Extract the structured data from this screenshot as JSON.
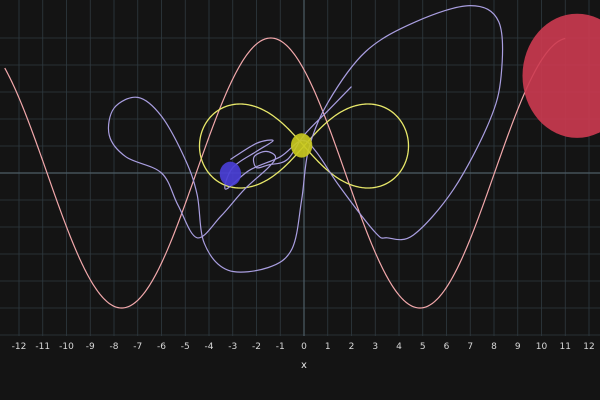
{
  "chart_data": {
    "type": "line",
    "title": "",
    "xlabel": "x",
    "ylabel": "",
    "xlim": [
      -12.6,
      12.6
    ],
    "ylim": [
      -6.9,
      5.6
    ],
    "x_ticks": [
      -12,
      -11,
      -10,
      -9,
      -8,
      -7,
      -6,
      -5,
      -4,
      -3,
      -2,
      -1,
      0,
      1,
      2,
      3,
      4,
      5,
      6,
      7,
      8,
      9,
      10,
      11,
      12
    ],
    "grid": true,
    "legend": "none",
    "colors": {
      "background": "#141414",
      "grid": "#2f3a40",
      "axis": "#4d5d66",
      "sine_curve": "#f2a8ab",
      "spiral_curve": "#a99ee0",
      "lemniscate_curve": "#e8e86a",
      "big_circle": "#cc3a50",
      "yellow_dot": "#c8c820",
      "blue_dot": "#4a3fd6"
    },
    "sine_curve": {
      "amplitude": 5,
      "period": 12.56,
      "peak_x": -1.4,
      "offset": 0,
      "x_start": -12.6,
      "x_end": 11,
      "color_key": "sine_curve"
    },
    "lemniscate_curve": {
      "center": [
        0,
        1
      ],
      "half_width": 4.4,
      "color_key": "lemniscate_curve"
    },
    "spiral_curve": {
      "points": [
        [
          2,
          3.2
        ],
        [
          1,
          2.3
        ],
        [
          0,
          1.4
        ],
        [
          -0.7,
          0.5
        ],
        [
          -1.5,
          0.3
        ],
        [
          -2,
          0.2
        ],
        [
          -2.1,
          0.6
        ],
        [
          -1.6,
          0.8
        ],
        [
          -1.2,
          0.6
        ],
        [
          -1.5,
          0.2
        ],
        [
          -2.5,
          -0.6
        ],
        [
          -3.5,
          -1.6
        ],
        [
          -4.5,
          -2.4
        ],
        [
          -5.3,
          -1.2
        ],
        [
          -6,
          0
        ],
        [
          -7.5,
          0.6
        ],
        [
          -8.2,
          1.4
        ],
        [
          -8,
          2.4
        ],
        [
          -7,
          2.8
        ],
        [
          -6,
          2.1
        ],
        [
          -5,
          0.5
        ],
        [
          -4.5,
          -0.8
        ],
        [
          -4.2,
          -2.6
        ],
        [
          -3.2,
          -3.6
        ],
        [
          -1.5,
          -3.5
        ],
        [
          -0.5,
          -2.8
        ],
        [
          -0.1,
          -1
        ],
        [
          0.2,
          0.9
        ],
        [
          1,
          2.6
        ],
        [
          2.6,
          4.5
        ],
        [
          4.7,
          5.6
        ],
        [
          7,
          6.2
        ],
        [
          8.2,
          5.6
        ],
        [
          8.3,
          3.6
        ],
        [
          7.8,
          1.9
        ],
        [
          6.3,
          -0.6
        ],
        [
          4.6,
          -2.3
        ],
        [
          3.5,
          -2.4
        ],
        [
          3,
          -2.2
        ],
        [
          1.5,
          -0.5
        ],
        [
          0.5,
          0.8
        ],
        [
          -0.1,
          1.2
        ],
        [
          -1,
          0.6
        ],
        [
          -2.3,
          0.1
        ],
        [
          -3.3,
          -0.6
        ],
        [
          -3,
          0.2
        ],
        [
          -2,
          0.8
        ],
        [
          -1.3,
          1.2
        ],
        [
          -2,
          1.1
        ],
        [
          -3.1,
          0.5
        ]
      ],
      "color_key": "spiral_curve"
    },
    "markers": [
      {
        "name": "big-circle",
        "x": 11.5,
        "y": 3.6,
        "radius": 2.3,
        "color_key": "big_circle"
      },
      {
        "name": "yellow-dot",
        "x": -0.1,
        "y": 1.02,
        "radius": 0.45,
        "color_key": "yellow_dot"
      },
      {
        "name": "blue-dot",
        "x": -3.1,
        "y": -0.03,
        "radius": 0.45,
        "color_key": "blue_dot"
      }
    ]
  }
}
